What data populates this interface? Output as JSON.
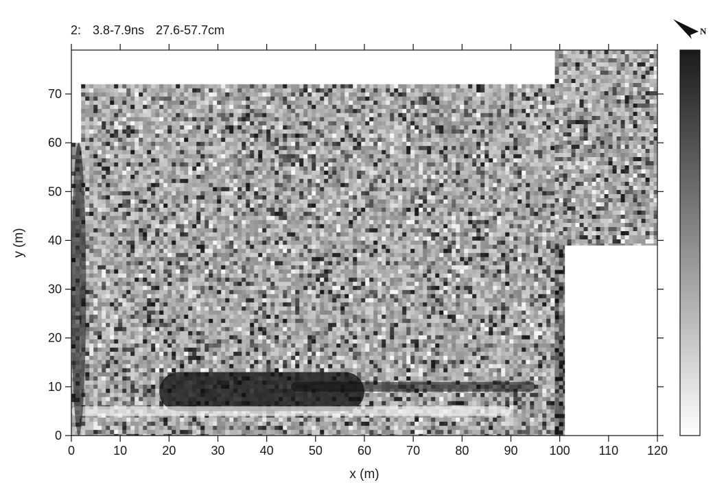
{
  "chart_data": {
    "type": "heatmap",
    "title": "2:  3.8-7.9ns  27.6-57.7cm",
    "slice_index": "2:",
    "time_window": "3.8-7.9ns",
    "depth_range": "27.6-57.7cm",
    "xlabel": "x (m)",
    "ylabel": "y (m)",
    "xlim": [
      0,
      120
    ],
    "ylim": [
      0,
      79
    ],
    "x_ticks": [
      0,
      10,
      20,
      30,
      40,
      50,
      60,
      70,
      80,
      90,
      100,
      110,
      120
    ],
    "y_ticks": [
      0,
      10,
      20,
      30,
      40,
      50,
      60,
      70
    ],
    "x_tick_labels": [
      "0",
      "10",
      "20",
      "30",
      "40",
      "50",
      "60",
      "70",
      "80",
      "90",
      "100",
      "110",
      "120"
    ],
    "y_tick_labels": [
      "0",
      "10",
      "20",
      "30",
      "40",
      "50",
      "60",
      "70"
    ],
    "grid": false,
    "colormap": "grayscale (white = low, black = high)",
    "colorbar": {
      "position": "right",
      "from_color": "#ffffff",
      "to_color": "#1a1a1a",
      "tick_labels": []
    },
    "north_arrow": {
      "label": "N",
      "position": "top-right"
    },
    "survey_coverage": [
      {
        "region": "main block",
        "x": [
          2,
          99
        ],
        "y": [
          0,
          72
        ]
      },
      {
        "region": "left strip",
        "x": [
          0,
          2
        ],
        "y": [
          0,
          60
        ]
      },
      {
        "region": "upper right block",
        "x": [
          99,
          120
        ],
        "y": [
          39,
          79
        ]
      },
      {
        "region": "lower right strip",
        "x": [
          99,
          101
        ],
        "y": [
          0,
          39
        ]
      }
    ],
    "unsurveyed_regions": [
      {
        "region": "top band",
        "x": [
          0,
          99
        ],
        "y": [
          72,
          79
        ]
      },
      {
        "region": "top left corner",
        "x": [
          0,
          2
        ],
        "y": [
          60,
          72
        ]
      },
      {
        "region": "lower right block",
        "x": [
          101,
          120
        ],
        "y": [
          0,
          39
        ]
      }
    ],
    "features": [
      {
        "type": "strong dark linear band",
        "x": [
          18,
          60
        ],
        "y": [
          5,
          13
        ]
      },
      {
        "type": "dark linear band",
        "x": [
          45,
          95
        ],
        "y": [
          9,
          11
        ]
      },
      {
        "type": "bright linear band",
        "x": [
          0,
          90
        ],
        "y": [
          4,
          6
        ]
      },
      {
        "type": "dark vertical strip",
        "x": [
          0,
          3
        ],
        "y": [
          0,
          60
        ]
      }
    ]
  }
}
